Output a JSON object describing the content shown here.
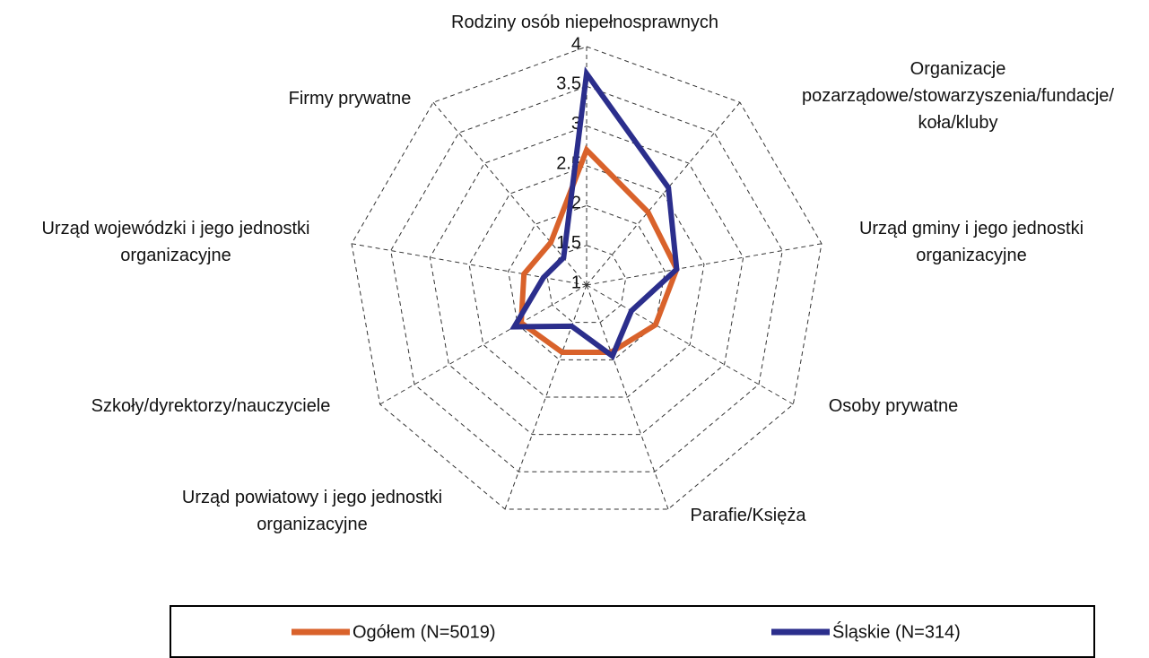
{
  "chart_data": {
    "type": "radar",
    "categories": [
      "Rodziny osób niepełnosprawnych",
      "Organizacje pozarządowe/stowarzyszenia/fundacje/ koła/kluby",
      "Urząd gminy i jego jednostki organizacyjne",
      "Osoby prywatne",
      "Parafie/Księża",
      "Urząd powiatowy i jego jednostki organizacyjne",
      "Szkoły/dyrektorzy/nauczyciele",
      "Urząd wojewódzki i jego jednostki organizacyjne",
      "Firmy prywatne"
    ],
    "series": [
      {
        "name": "Ogółem (N=5019)",
        "color": "#d9622b",
        "values": [
          2.7,
          2.2,
          2.15,
          2.0,
          1.9,
          1.9,
          1.95,
          1.8,
          1.7
        ]
      },
      {
        "name": "Śląskie (N=314)",
        "color": "#2b2e8c",
        "values": [
          3.66,
          2.6,
          2.15,
          1.65,
          1.95,
          1.55,
          2.05,
          1.55,
          1.45
        ]
      }
    ],
    "ylim": [
      1,
      4
    ],
    "yticks": [
      1,
      1.5,
      2,
      2.5,
      3,
      3.5,
      4
    ],
    "grid": true,
    "legend": "bottom"
  }
}
